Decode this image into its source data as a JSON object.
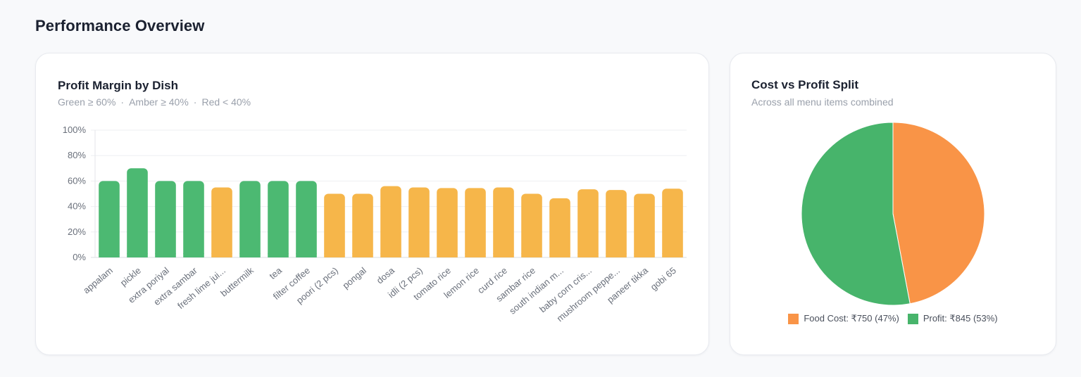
{
  "page": {
    "title": "Performance Overview"
  },
  "margin_card": {
    "title": "Profit Margin by Dish",
    "legend_text": {
      "green": "Green ≥ 60%",
      "amber": "Amber ≥ 40%",
      "red": "Red < 40%",
      "separator": "·"
    }
  },
  "split_card": {
    "title": "Cost vs Profit Split",
    "subtitle": "Across all menu items combined"
  },
  "colors": {
    "green": "#4cb972",
    "amber": "#f6b64a",
    "red": "#e5534b",
    "food_cost": "#f99447",
    "profit": "#47b46b"
  },
  "chart_data": [
    {
      "type": "bar",
      "title": "Profit Margin by Dish",
      "categories": [
        "appalam",
        "pickle",
        "extra poriyal",
        "extra sambar",
        "fresh lime jui...",
        "buttermilk",
        "tea",
        "filter coffee",
        "poori (2 pcs)",
        "pongal",
        "dosa",
        "idli (2 pcs)",
        "tomato rice",
        "lemon rice",
        "curd rice",
        "sambar rice",
        "south indian m...",
        "baby corn cris...",
        "mushroom peppe...",
        "paneer tikka",
        "gobi 65"
      ],
      "values": [
        60,
        70,
        60,
        60,
        55,
        60,
        60,
        60,
        50,
        50,
        56,
        55,
        54.5,
        54.5,
        55,
        50,
        46.5,
        53.5,
        53,
        50,
        54
      ],
      "ylim": [
        0,
        100
      ],
      "yticks": [
        "0%",
        "20%",
        "40%",
        "60%",
        "80%",
        "100%"
      ],
      "grid": true,
      "color_rule": {
        "green_min": 60,
        "amber_min": 40
      }
    },
    {
      "type": "pie",
      "title": "Cost vs Profit Split",
      "slices": [
        {
          "label": "Food Cost: ₹750 (47%)",
          "value": 750,
          "color": "#f99447"
        },
        {
          "label": "Profit: ₹845 (53%)",
          "value": 845,
          "color": "#47b46b"
        }
      ],
      "legend_position": "bottom"
    }
  ]
}
